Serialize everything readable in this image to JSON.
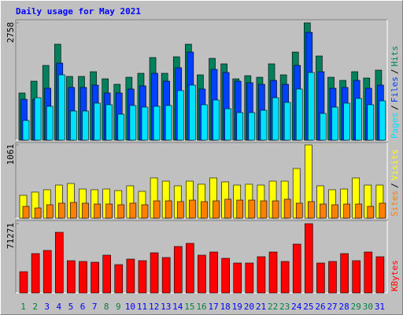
{
  "chart_data": [
    {
      "type": "bar",
      "title": "Daily usage for May 2021",
      "ylim": [
        0,
        2758
      ],
      "yticks": [
        2758
      ],
      "legend_separator": "/",
      "series": [
        {
          "name": "Hits",
          "color": "#00805c",
          "values": [
            1110,
            1388,
            1758,
            2257,
            1499,
            1499,
            1610,
            1443,
            1314,
            1480,
            1573,
            1943,
            1573,
            1961,
            2257,
            1536,
            1924,
            1795,
            1443,
            1517,
            1480,
            1795,
            1536,
            2072,
            2758,
            1980,
            1480,
            1406,
            1610,
            1462,
            1647
          ]
        },
        {
          "name": "Files",
          "color": "#0040ff",
          "values": [
            962,
            962,
            1221,
            1813,
            1240,
            1240,
            1295,
            1110,
            1110,
            1203,
            1277,
            1573,
            1388,
            1702,
            2072,
            1203,
            1665,
            1591,
            1388,
            1351,
            1314,
            1406,
            1314,
            1758,
            2535,
            1610,
            1221,
            1240,
            1406,
            1221,
            1295
          ]
        },
        {
          "name": "Pages",
          "color": "#00e0ff",
          "values": [
            463,
            999,
            796,
            1536,
            685,
            685,
            870,
            833,
            611,
            815,
            777,
            796,
            815,
            1166,
            1295,
            833,
            944,
            740,
            648,
            648,
            703,
            999,
            888,
            1203,
            1591,
            629,
            777,
            870,
            981,
            833,
            925
          ]
        }
      ]
    },
    {
      "type": "bar",
      "ylim": [
        0,
        1061
      ],
      "yticks": [
        1061
      ],
      "legend_separator": "/",
      "series": [
        {
          "name": "Visits",
          "color": "#ffff00",
          "values": [
            331,
            377,
            411,
            479,
            502,
            422,
            411,
            422,
            399,
            468,
            388,
            582,
            536,
            468,
            536,
            491,
            582,
            525,
            479,
            491,
            479,
            536,
            536,
            719,
            1061,
            468,
            411,
            422,
            582,
            479,
            479
          ]
        },
        {
          "name": "Sites",
          "color": "#ff8000",
          "values": [
            171,
            148,
            194,
            217,
            228,
            217,
            205,
            205,
            194,
            217,
            194,
            251,
            251,
            240,
            262,
            240,
            251,
            274,
            262,
            262,
            251,
            251,
            274,
            217,
            240,
            205,
            194,
            205,
            205,
            171,
            217
          ]
        }
      ]
    },
    {
      "type": "bar",
      "ylim": [
        0,
        71271
      ],
      "yticks": [
        71271
      ],
      "categories": [
        "1",
        "2",
        "3",
        "4",
        "5",
        "6",
        "7",
        "8",
        "9",
        "10",
        "11",
        "12",
        "13",
        "14",
        "15",
        "16",
        "17",
        "18",
        "19",
        "20",
        "21",
        "22",
        "23",
        "24",
        "25",
        "26",
        "27",
        "28",
        "29",
        "30",
        "31"
      ],
      "highlight_categories": [
        "1",
        "2",
        "8",
        "9",
        "15",
        "16",
        "22",
        "23",
        "29",
        "30"
      ],
      "highlight_color": "#008040",
      "label_color": "#0000ff",
      "series": [
        {
          "name": "KBytes",
          "color": "#ff0000",
          "values": [
            21870,
            40500,
            43740,
            62370,
            33210,
            32400,
            31590,
            38880,
            29160,
            34830,
            33210,
            41310,
            36450,
            47790,
            51030,
            38880,
            42120,
            35640,
            30780,
            30780,
            37260,
            42120,
            32400,
            50220,
            71271,
            30780,
            32400,
            40500,
            33210,
            42120,
            37260
          ]
        }
      ]
    }
  ]
}
